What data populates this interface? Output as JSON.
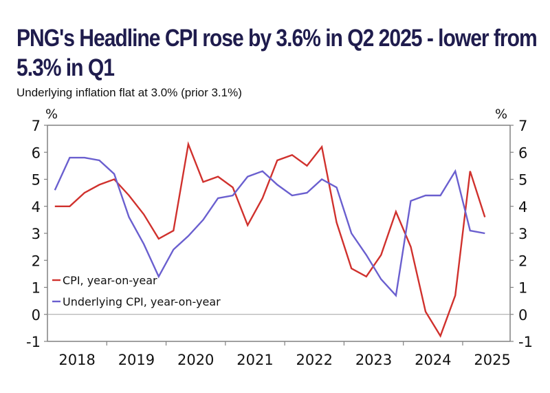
{
  "title": "PNG's Headline CPI rose by 3.6% in Q2 2025 - lower from 5.3% in Q1",
  "subtitle": "Underlying inflation flat at 3.0% (prior 3.1%)",
  "chart_data": {
    "type": "line",
    "title": "PNG's Headline CPI rose by 3.6% in Q2 2025 - lower from 5.3% in Q1",
    "subtitle": "Underlying inflation flat at 3.0% (prior 3.1%)",
    "xlabel": "",
    "ylabel_left": "%",
    "ylabel_right": "%",
    "ylim": [
      -1,
      7
    ],
    "yticks": [
      -1,
      0,
      1,
      2,
      3,
      4,
      5,
      6,
      7
    ],
    "x_tick_labels": [
      "2018",
      "2019",
      "2020",
      "2021",
      "2022",
      "2023",
      "2024",
      "2025"
    ],
    "x": [
      "Q1 2018",
      "Q2 2018",
      "Q3 2018",
      "Q4 2018",
      "Q1 2019",
      "Q2 2019",
      "Q3 2019",
      "Q4 2019",
      "Q1 2020",
      "Q2 2020",
      "Q3 2020",
      "Q4 2020",
      "Q1 2021",
      "Q2 2021",
      "Q3 2021",
      "Q4 2021",
      "Q1 2022",
      "Q2 2022",
      "Q3 2022",
      "Q4 2022",
      "Q1 2023",
      "Q2 2023",
      "Q3 2023",
      "Q4 2023",
      "Q1 2024",
      "Q2 2024",
      "Q3 2024",
      "Q4 2024",
      "Q1 2025",
      "Q2 2025"
    ],
    "grid": false,
    "zero_line": true,
    "legend_position": "bottom-left",
    "series": [
      {
        "name": "CPI, year-on-year",
        "color": "#d0312d",
        "values": [
          4.0,
          4.0,
          4.5,
          4.8,
          5.0,
          4.4,
          3.7,
          2.8,
          3.1,
          6.3,
          4.9,
          5.1,
          4.7,
          3.3,
          4.3,
          5.7,
          5.9,
          5.5,
          6.2,
          3.4,
          1.7,
          1.4,
          2.2,
          3.8,
          2.5,
          0.1,
          -0.8,
          0.7,
          5.3,
          3.6
        ]
      },
      {
        "name": "Underlying CPI, year-on-year",
        "color": "#6a5fcf",
        "values": [
          4.6,
          5.8,
          5.8,
          5.7,
          5.2,
          3.6,
          2.6,
          1.4,
          2.4,
          2.9,
          3.5,
          4.3,
          4.4,
          5.1,
          5.3,
          4.8,
          4.4,
          4.5,
          5.0,
          4.7,
          3.0,
          2.2,
          1.3,
          0.7,
          4.2,
          4.4,
          4.4,
          5.3,
          3.1,
          3.0
        ]
      }
    ]
  }
}
